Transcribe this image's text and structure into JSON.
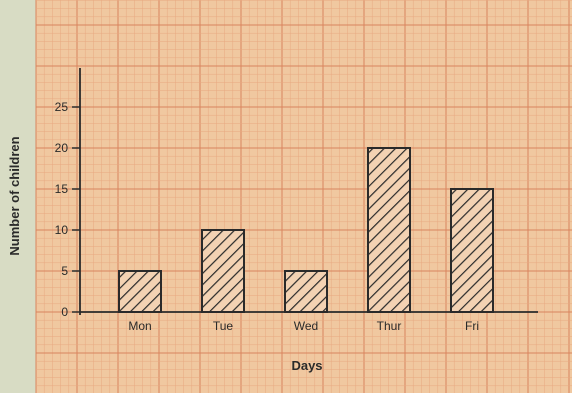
{
  "chart_data": {
    "type": "bar",
    "title": "",
    "xlabel": "Days",
    "ylabel": "Number of children",
    "categories": [
      "Mon",
      "Tue",
      "Wed",
      "Thur",
      "Fri"
    ],
    "values": [
      5,
      10,
      5,
      20,
      15
    ],
    "yticks": [
      "0",
      "5",
      "10",
      "15",
      "20",
      "25"
    ],
    "ylim": [
      0,
      30
    ],
    "grid": true,
    "legend": "none",
    "bar_fill": "diagonal-hatch",
    "colors": {
      "paper": "#f0c8a0",
      "grid_minor": "#e8a880",
      "grid_major": "#d9845e",
      "margin": "#d8dcc4",
      "axis": "#2a2a2a",
      "bar_stroke": "#2a2a2a",
      "bar_fill": "#f3d2b3",
      "text": "#2a2a2a"
    }
  }
}
